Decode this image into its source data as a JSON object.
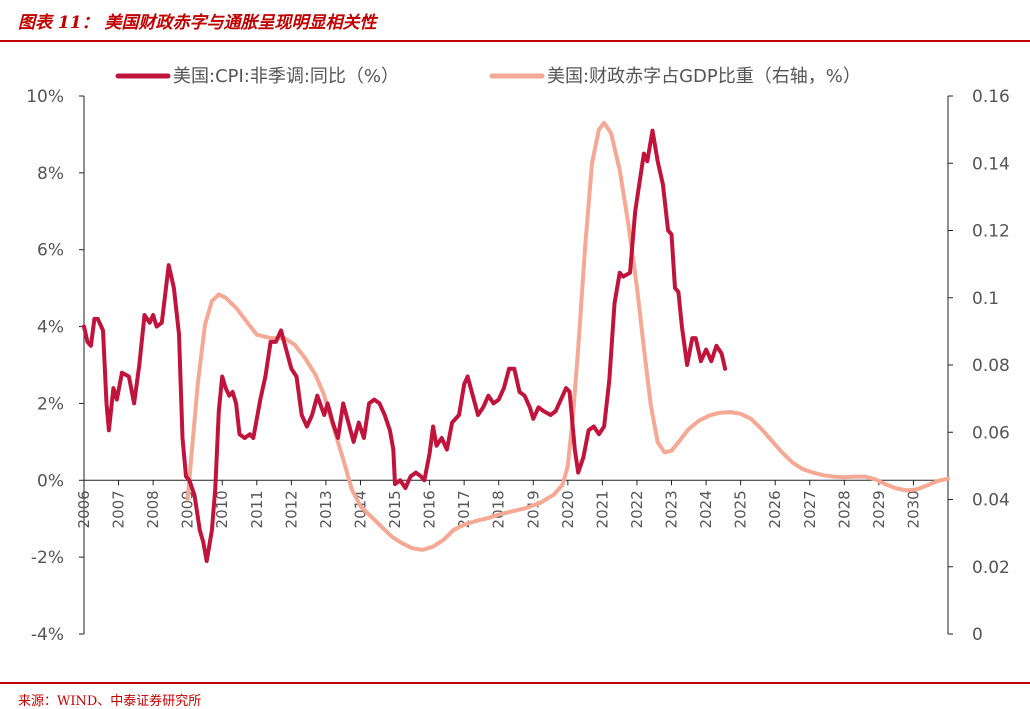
{
  "figure": {
    "title": "图表 11： 美国财政赤字与通胀呈现明显相关性",
    "source": "来源：WIND、中泰证券研究所"
  },
  "chart_data": {
    "type": "line",
    "title": "",
    "xlabel": "",
    "ylabel_left": "",
    "ylabel_right": "",
    "x_ticks": [
      "2006",
      "2007",
      "2008",
      "2009",
      "2010",
      "2011",
      "2012",
      "2013",
      "2014",
      "2015",
      "2016",
      "2017",
      "2018",
      "2019",
      "2020",
      "2021",
      "2022",
      "2023",
      "2024",
      "2025",
      "2026",
      "2027",
      "2028",
      "2029",
      "2030"
    ],
    "x_range": [
      2006,
      2031
    ],
    "y_left": {
      "range": [
        -4,
        10
      ],
      "ticks": [
        10,
        8,
        6,
        4,
        2,
        0,
        -2,
        -4
      ],
      "tick_labels": [
        "10%",
        "8%",
        "6%",
        "4%",
        "2%",
        "0%",
        "-2%",
        "-4%"
      ]
    },
    "y_right": {
      "range": [
        0,
        0.16
      ],
      "ticks": [
        0.16,
        0.14,
        0.12,
        0.1,
        0.08,
        0.06,
        0.04,
        0.02,
        0
      ],
      "tick_labels": [
        "0.16",
        "0.14",
        "0.12",
        "0.1",
        "0.08",
        "0.06",
        "0.04",
        "0.02",
        "0"
      ]
    },
    "grid": false,
    "legend_position": "top",
    "series": [
      {
        "name": "美国:CPI:非季调:同比（%）",
        "axis": "left",
        "color": "#c0143c",
        "points": [
          [
            2006.0,
            4.0
          ],
          [
            2006.1,
            3.6
          ],
          [
            2006.2,
            3.5
          ],
          [
            2006.3,
            4.2
          ],
          [
            2006.4,
            4.2
          ],
          [
            2006.55,
            3.9
          ],
          [
            2006.65,
            2.0
          ],
          [
            2006.72,
            1.3
          ],
          [
            2006.85,
            2.4
          ],
          [
            2006.95,
            2.1
          ],
          [
            2007.1,
            2.8
          ],
          [
            2007.3,
            2.7
          ],
          [
            2007.45,
            2.0
          ],
          [
            2007.6,
            3.0
          ],
          [
            2007.75,
            4.3
          ],
          [
            2007.9,
            4.1
          ],
          [
            2008.0,
            4.3
          ],
          [
            2008.1,
            4.0
          ],
          [
            2008.25,
            4.1
          ],
          [
            2008.45,
            5.6
          ],
          [
            2008.6,
            5.0
          ],
          [
            2008.75,
            3.8
          ],
          [
            2008.85,
            1.1
          ],
          [
            2008.95,
            0.1
          ],
          [
            2009.05,
            0.0
          ],
          [
            2009.2,
            -0.4
          ],
          [
            2009.35,
            -1.3
          ],
          [
            2009.45,
            -1.6
          ],
          [
            2009.55,
            -2.1
          ],
          [
            2009.7,
            -1.3
          ],
          [
            2009.8,
            -0.2
          ],
          [
            2009.9,
            1.8
          ],
          [
            2010.0,
            2.7
          ],
          [
            2010.1,
            2.4
          ],
          [
            2010.2,
            2.2
          ],
          [
            2010.3,
            2.3
          ],
          [
            2010.4,
            2.0
          ],
          [
            2010.5,
            1.2
          ],
          [
            2010.65,
            1.1
          ],
          [
            2010.8,
            1.2
          ],
          [
            2010.9,
            1.1
          ],
          [
            2011.0,
            1.6
          ],
          [
            2011.1,
            2.1
          ],
          [
            2011.25,
            2.7
          ],
          [
            2011.4,
            3.6
          ],
          [
            2011.55,
            3.6
          ],
          [
            2011.7,
            3.9
          ],
          [
            2011.85,
            3.4
          ],
          [
            2012.0,
            2.9
          ],
          [
            2012.15,
            2.7
          ],
          [
            2012.3,
            1.7
          ],
          [
            2012.45,
            1.4
          ],
          [
            2012.6,
            1.7
          ],
          [
            2012.75,
            2.2
          ],
          [
            2012.95,
            1.7
          ],
          [
            2013.05,
            2.0
          ],
          [
            2013.2,
            1.5
          ],
          [
            2013.35,
            1.1
          ],
          [
            2013.5,
            2.0
          ],
          [
            2013.65,
            1.5
          ],
          [
            2013.8,
            1.0
          ],
          [
            2013.95,
            1.5
          ],
          [
            2014.1,
            1.1
          ],
          [
            2014.25,
            2.0
          ],
          [
            2014.4,
            2.1
          ],
          [
            2014.55,
            2.0
          ],
          [
            2014.7,
            1.7
          ],
          [
            2014.85,
            1.3
          ],
          [
            2014.95,
            0.8
          ],
          [
            2015.0,
            -0.1
          ],
          [
            2015.15,
            0.0
          ],
          [
            2015.3,
            -0.2
          ],
          [
            2015.45,
            0.1
          ],
          [
            2015.6,
            0.2
          ],
          [
            2015.75,
            0.1
          ],
          [
            2015.85,
            0.0
          ],
          [
            2016.0,
            0.7
          ],
          [
            2016.1,
            1.4
          ],
          [
            2016.2,
            0.9
          ],
          [
            2016.35,
            1.1
          ],
          [
            2016.5,
            0.8
          ],
          [
            2016.65,
            1.5
          ],
          [
            2016.85,
            1.7
          ],
          [
            2017.0,
            2.5
          ],
          [
            2017.1,
            2.7
          ],
          [
            2017.25,
            2.2
          ],
          [
            2017.4,
            1.7
          ],
          [
            2017.55,
            1.9
          ],
          [
            2017.7,
            2.2
          ],
          [
            2017.85,
            2.0
          ],
          [
            2018.0,
            2.1
          ],
          [
            2018.15,
            2.4
          ],
          [
            2018.3,
            2.9
          ],
          [
            2018.45,
            2.9
          ],
          [
            2018.6,
            2.3
          ],
          [
            2018.75,
            2.2
          ],
          [
            2018.9,
            1.9
          ],
          [
            2019.0,
            1.6
          ],
          [
            2019.15,
            1.9
          ],
          [
            2019.3,
            1.8
          ],
          [
            2019.5,
            1.7
          ],
          [
            2019.65,
            1.8
          ],
          [
            2019.8,
            2.1
          ],
          [
            2019.95,
            2.4
          ],
          [
            2020.05,
            2.3
          ],
          [
            2020.2,
            0.8
          ],
          [
            2020.3,
            0.2
          ],
          [
            2020.45,
            0.6
          ],
          [
            2020.6,
            1.3
          ],
          [
            2020.75,
            1.4
          ],
          [
            2020.9,
            1.2
          ],
          [
            2021.05,
            1.4
          ],
          [
            2021.2,
            2.6
          ],
          [
            2021.35,
            4.6
          ],
          [
            2021.5,
            5.4
          ],
          [
            2021.6,
            5.3
          ],
          [
            2021.8,
            5.4
          ],
          [
            2021.95,
            7.0
          ],
          [
            2022.1,
            7.9
          ],
          [
            2022.2,
            8.5
          ],
          [
            2022.3,
            8.3
          ],
          [
            2022.45,
            9.1
          ],
          [
            2022.6,
            8.3
          ],
          [
            2022.75,
            7.7
          ],
          [
            2022.9,
            6.5
          ],
          [
            2023.0,
            6.4
          ],
          [
            2023.1,
            5.0
          ],
          [
            2023.2,
            4.9
          ],
          [
            2023.3,
            4.0
          ],
          [
            2023.45,
            3.0
          ],
          [
            2023.6,
            3.7
          ],
          [
            2023.7,
            3.7
          ],
          [
            2023.85,
            3.1
          ],
          [
            2024.0,
            3.4
          ],
          [
            2024.15,
            3.1
          ],
          [
            2024.3,
            3.5
          ],
          [
            2024.45,
            3.3
          ],
          [
            2024.55,
            2.9
          ]
        ]
      },
      {
        "name": "美国:财政赤字占GDP比重（右轴，%）",
        "axis": "right",
        "color": "#f5a894",
        "points": [
          [
            2009.0,
            0.04
          ],
          [
            2009.1,
            0.052
          ],
          [
            2009.3,
            0.075
          ],
          [
            2009.5,
            0.092
          ],
          [
            2009.7,
            0.099
          ],
          [
            2009.9,
            0.101
          ],
          [
            2010.1,
            0.1
          ],
          [
            2010.4,
            0.097
          ],
          [
            2010.7,
            0.093
          ],
          [
            2011.0,
            0.089
          ],
          [
            2011.4,
            0.088
          ],
          [
            2011.8,
            0.088
          ],
          [
            2012.1,
            0.086
          ],
          [
            2012.4,
            0.082
          ],
          [
            2012.7,
            0.077
          ],
          [
            2012.95,
            0.071
          ],
          [
            2013.2,
            0.062
          ],
          [
            2013.5,
            0.052
          ],
          [
            2013.75,
            0.043
          ],
          [
            2014.0,
            0.038
          ],
          [
            2014.3,
            0.035
          ],
          [
            2014.6,
            0.032
          ],
          [
            2014.9,
            0.029
          ],
          [
            2015.2,
            0.027
          ],
          [
            2015.5,
            0.0255
          ],
          [
            2015.8,
            0.025
          ],
          [
            2016.1,
            0.026
          ],
          [
            2016.4,
            0.028
          ],
          [
            2016.7,
            0.031
          ],
          [
            2017.0,
            0.0325
          ],
          [
            2017.3,
            0.0335
          ],
          [
            2017.7,
            0.0345
          ],
          [
            2018.0,
            0.0355
          ],
          [
            2018.4,
            0.0365
          ],
          [
            2018.8,
            0.0375
          ],
          [
            2019.2,
            0.039
          ],
          [
            2019.6,
            0.0415
          ],
          [
            2019.85,
            0.0445
          ],
          [
            2020.0,
            0.05
          ],
          [
            2020.15,
            0.065
          ],
          [
            2020.3,
            0.085
          ],
          [
            2020.5,
            0.115
          ],
          [
            2020.7,
            0.14
          ],
          [
            2020.9,
            0.15
          ],
          [
            2021.05,
            0.152
          ],
          [
            2021.25,
            0.149
          ],
          [
            2021.5,
            0.138
          ],
          [
            2021.75,
            0.122
          ],
          [
            2022.0,
            0.103
          ],
          [
            2022.2,
            0.085
          ],
          [
            2022.4,
            0.068
          ],
          [
            2022.6,
            0.057
          ],
          [
            2022.8,
            0.054
          ],
          [
            2023.0,
            0.0545
          ],
          [
            2023.2,
            0.057
          ],
          [
            2023.5,
            0.061
          ],
          [
            2023.8,
            0.0635
          ],
          [
            2024.1,
            0.065
          ],
          [
            2024.4,
            0.0658
          ],
          [
            2024.7,
            0.066
          ],
          [
            2025.0,
            0.0655
          ],
          [
            2025.3,
            0.064
          ],
          [
            2025.6,
            0.061
          ],
          [
            2025.9,
            0.0575
          ],
          [
            2026.2,
            0.054
          ],
          [
            2026.5,
            0.051
          ],
          [
            2026.8,
            0.049
          ],
          [
            2027.1,
            0.048
          ],
          [
            2027.4,
            0.0472
          ],
          [
            2027.7,
            0.0468
          ],
          [
            2028.0,
            0.0466
          ],
          [
            2028.3,
            0.0468
          ],
          [
            2028.6,
            0.0468
          ],
          [
            2028.9,
            0.046
          ],
          [
            2029.2,
            0.0445
          ],
          [
            2029.5,
            0.0433
          ],
          [
            2029.8,
            0.0427
          ],
          [
            2030.1,
            0.043
          ],
          [
            2030.4,
            0.0442
          ],
          [
            2030.7,
            0.0455
          ],
          [
            2031.0,
            0.0462
          ]
        ]
      }
    ]
  }
}
